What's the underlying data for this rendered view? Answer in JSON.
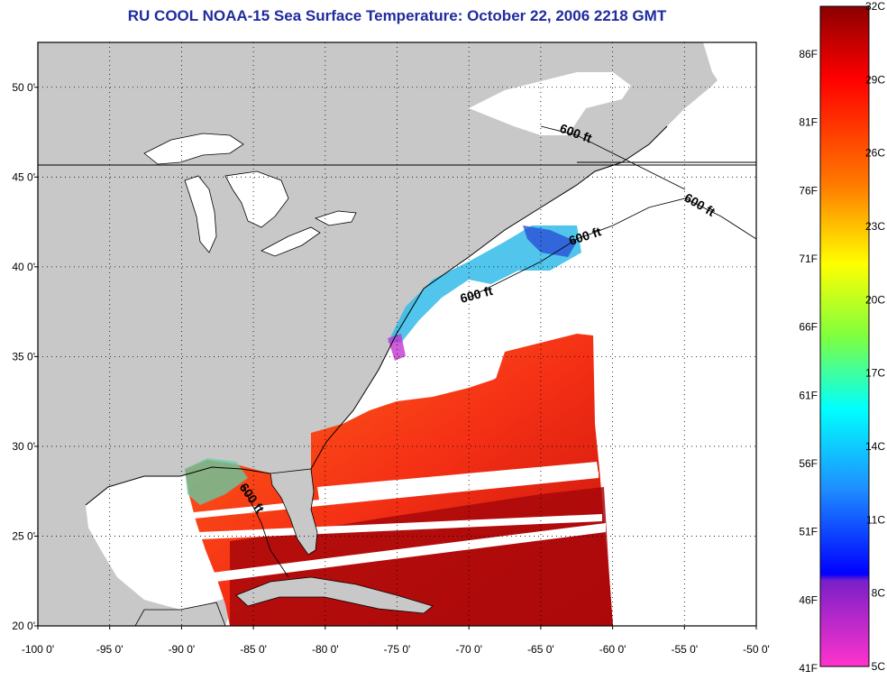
{
  "title": "RU COOL  NOAA-15  Sea Surface Temperature:  October 22, 2006 2218 GMT",
  "map": {
    "lon_range": [
      -100,
      -50
    ],
    "lat_range": [
      20,
      52.5
    ],
    "lon_ticks": [
      {
        "value": -100,
        "label": "-100 0'"
      },
      {
        "value": -95,
        "label": "-95 0'"
      },
      {
        "value": -90,
        "label": "-90 0'"
      },
      {
        "value": -85,
        "label": "-85 0'"
      },
      {
        "value": -80,
        "label": "-80 0'"
      },
      {
        "value": -75,
        "label": "-75 0'"
      },
      {
        "value": -70,
        "label": "-70 0'"
      },
      {
        "value": -65,
        "label": "-65 0'"
      },
      {
        "value": -60,
        "label": "-60 0'"
      },
      {
        "value": -55,
        "label": "-55 0'"
      },
      {
        "value": -50,
        "label": "-50 0'"
      }
    ],
    "lat_ticks": [
      {
        "value": 20,
        "label": "20 0'"
      },
      {
        "value": 25,
        "label": "25 0'"
      },
      {
        "value": 30,
        "label": "30 0'"
      },
      {
        "value": 35,
        "label": "35 0'"
      },
      {
        "value": 40,
        "label": "40 0'"
      },
      {
        "value": 45,
        "label": "45 0'"
      },
      {
        "value": 50,
        "label": "50 0'"
      }
    ],
    "contour_label": "600 ft",
    "colors": {
      "land": "#c8c8c8",
      "water": "#ffffff",
      "frame": "#000000"
    }
  },
  "colorbar": {
    "celsius_labels": [
      "32C",
      "29C",
      "26C",
      "23C",
      "20C",
      "17C",
      "14C",
      "11C",
      "8C",
      "5C"
    ],
    "fahrenheit_labels": [
      "86F",
      "81F",
      "76F",
      "71F",
      "66F",
      "61F",
      "56F",
      "51F",
      "46F",
      "41F"
    ],
    "top_color": "#8b0000",
    "bottom_color": "#ff33cc"
  }
}
